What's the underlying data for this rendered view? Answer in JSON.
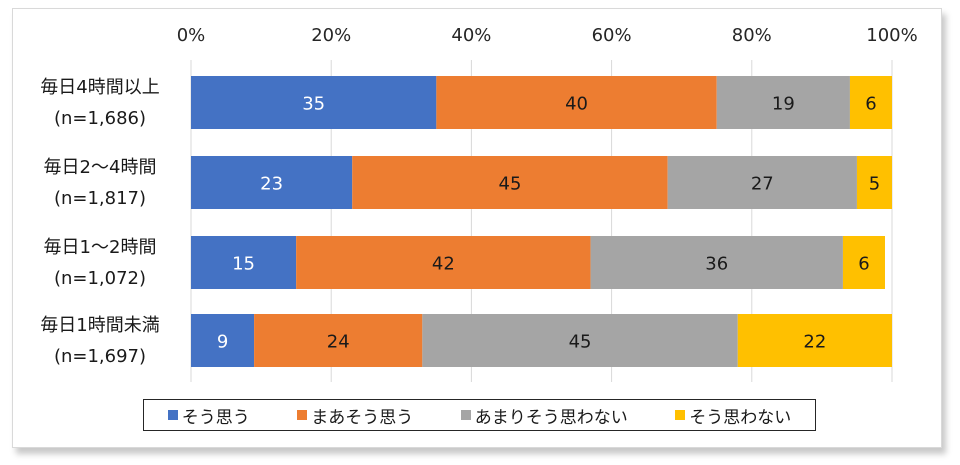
{
  "chart_data": {
    "type": "bar",
    "orientation": "horizontal",
    "stacked": true,
    "categories": [
      [
        "毎日4時間以上",
        "(n=1,686)"
      ],
      [
        "毎日2～4時間",
        "(n=1,817)"
      ],
      [
        "毎日1～2時間",
        "(n=1,072)"
      ],
      [
        "毎日1時間未満",
        "(n=1,697)"
      ]
    ],
    "series": [
      {
        "name": "そう思う",
        "color": "#4472C4",
        "label_color": "#ffffff",
        "values": [
          35,
          23,
          15,
          9
        ]
      },
      {
        "name": "まあそう思う",
        "color": "#ED7D31",
        "label_color": "#1a1a1a",
        "values": [
          40,
          45,
          42,
          24
        ]
      },
      {
        "name": "あまりそう思わない",
        "color": "#A5A5A5",
        "label_color": "#1a1a1a",
        "values": [
          19,
          27,
          36,
          45
        ]
      },
      {
        "name": "そう思わない",
        "color": "#FFC000",
        "label_color": "#1a1a1a",
        "values": [
          6,
          5,
          6,
          22
        ]
      }
    ],
    "xlim": [
      0,
      100
    ],
    "xticks": [
      "0%",
      "20%",
      "40%",
      "60%",
      "80%",
      "100%"
    ],
    "grid": true,
    "legend_position": "bottom"
  }
}
